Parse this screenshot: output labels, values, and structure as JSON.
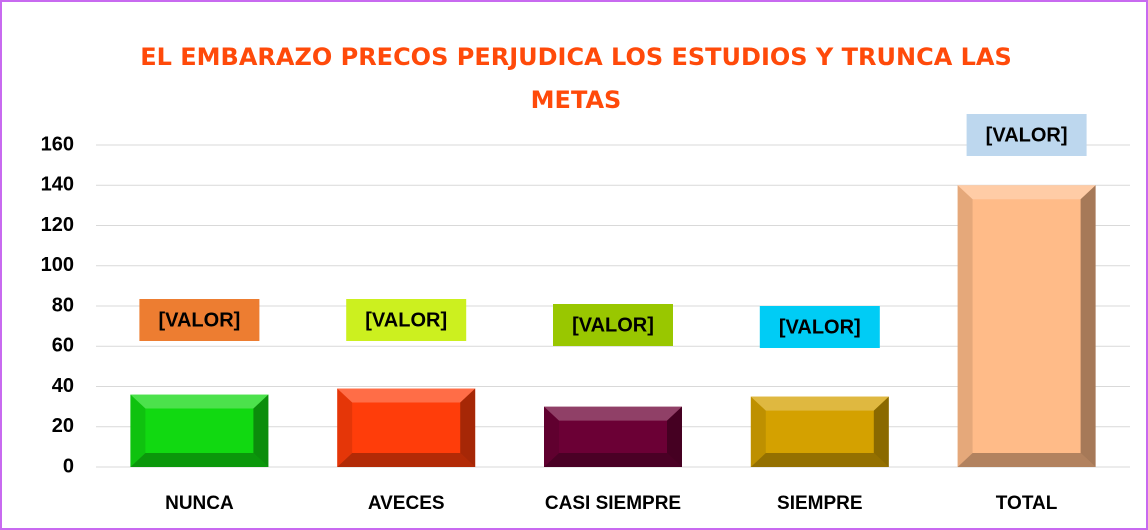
{
  "chart_data": {
    "type": "bar",
    "title": "EL EMBARAZO PRECOS PERJUDICA LOS ESTUDIOS Y TRUNCA LAS METAS",
    "categories": [
      "NUNCA",
      "AVECES",
      "CASI SIEMPRE",
      "SIEMPRE",
      "TOTAL"
    ],
    "values": [
      36,
      39,
      30,
      35,
      140
    ],
    "value_labels": [
      "[VALOR]",
      "[VALOR]",
      "[VALOR]",
      "[VALOR]",
      "[VALOR]"
    ],
    "colors": [
      "#11d911",
      "#ff3d0a",
      "#6b0035",
      "#d4a100",
      "#ffbb88"
    ],
    "label_colors": [
      "#ed7d31",
      "#ccf01f",
      "#99c700",
      "#00ccf5",
      "#bdd7ee"
    ],
    "ylim": [
      0,
      160
    ],
    "yticks": [
      0,
      20,
      40,
      60,
      80,
      100,
      120,
      140,
      160
    ],
    "grid": true
  }
}
